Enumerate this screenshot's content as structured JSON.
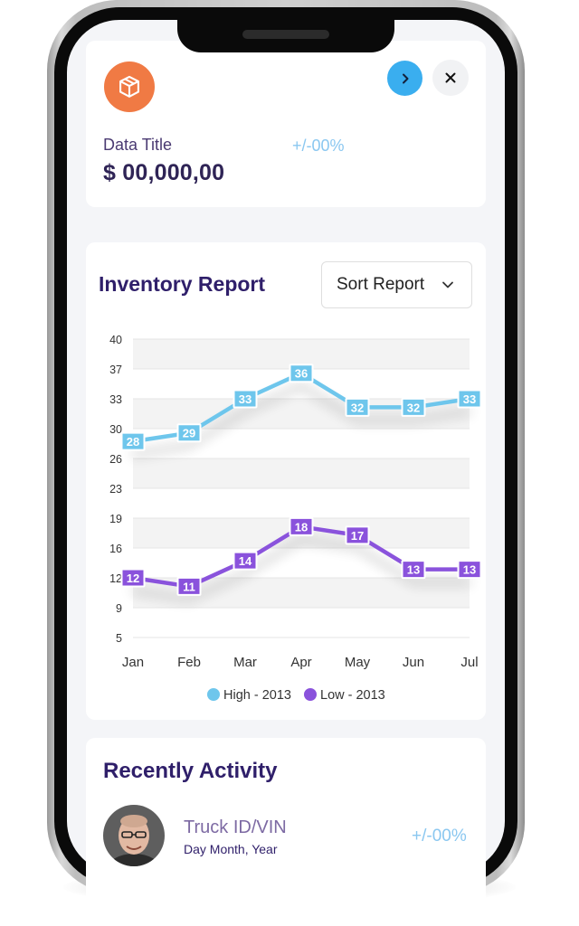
{
  "header": {
    "box_icon": "box-icon",
    "next_icon": "chevron-right-icon",
    "close_icon": "close-icon",
    "data_title": "Data Title",
    "data_value": "$ 00,000,00",
    "change": "+/-00%"
  },
  "report": {
    "title": "Inventory Report",
    "sort_label": "Sort Report",
    "sort_icon": "chevron-down-icon"
  },
  "chart_data": {
    "type": "line",
    "x": [
      "Jan",
      "Feb",
      "Mar",
      "Apr",
      "May",
      "Jun",
      "Jul"
    ],
    "series": [
      {
        "name": "High - 2013",
        "values": [
          28,
          29,
          33,
          36,
          32,
          32,
          33
        ],
        "color": "#6ec6ec"
      },
      {
        "name": "Low - 2013",
        "values": [
          12,
          11,
          14,
          18,
          17,
          13,
          13
        ],
        "color": "#8a52dc"
      }
    ],
    "y_ticks": [
      "40",
      "37",
      "33",
      "30",
      "26",
      "23",
      "19",
      "16",
      "12",
      "9",
      "5"
    ],
    "ylim": [
      5,
      40
    ],
    "grid": true,
    "data_labels": true,
    "legend": "bottom"
  },
  "activity": {
    "title": "Recently Activity",
    "item": {
      "name": "Truck ID/VIN",
      "date": "Day Month, Year",
      "change": "+/-00%"
    }
  },
  "colors": {
    "accent": "#3aaeef",
    "orange": "#f07a44",
    "heading": "#2f1f6a",
    "high": "#6ec6ec",
    "low": "#8a52dc"
  }
}
